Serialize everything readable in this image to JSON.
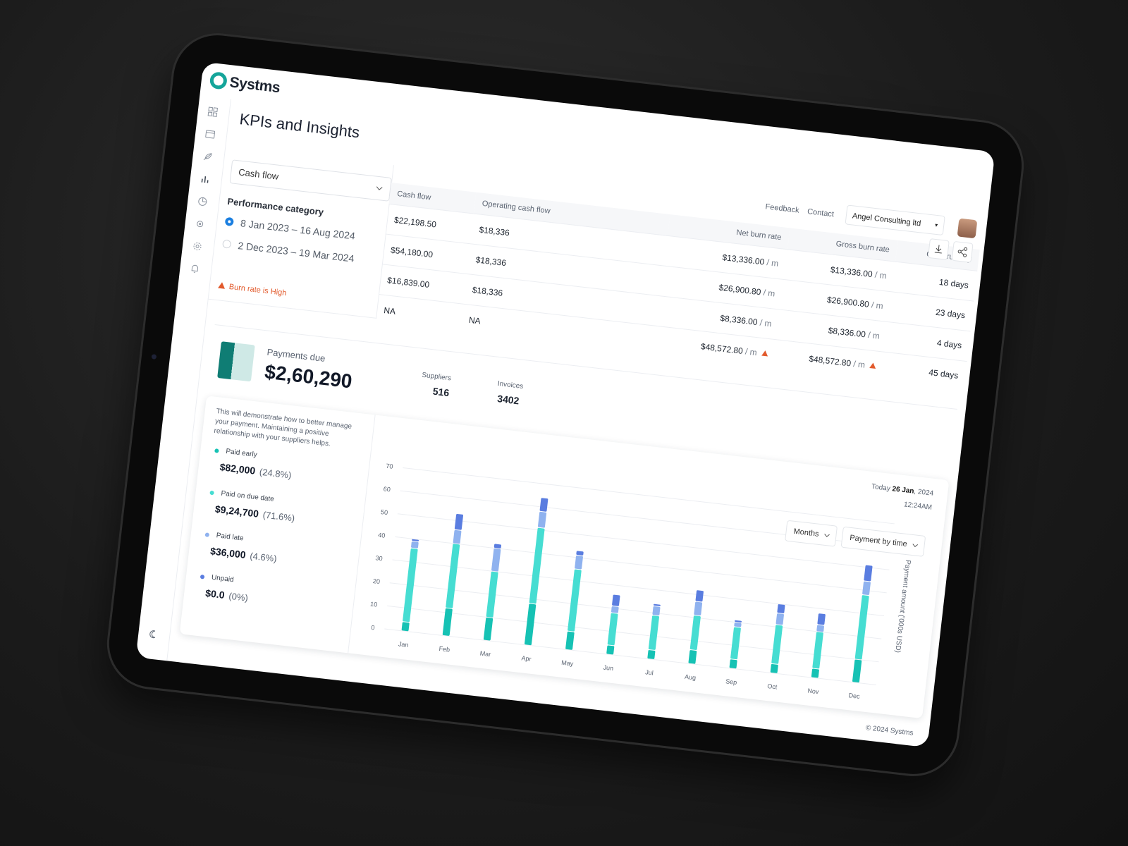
{
  "brand": "Systms",
  "page_title": "KPIs and Insights",
  "nav_links": [
    "Feedback",
    "Contact"
  ],
  "company": "Angel Consulting ltd",
  "filter": {
    "select": "Cash flow",
    "label": "Performance category",
    "options": [
      "8 Jan 2023 – 16 Aug 2024",
      "2 Dec 2023 – 19 Mar 2024"
    ],
    "warning": "Burn rate is High"
  },
  "table": {
    "columns": [
      "Cash flow",
      "Operating cash flow",
      "Net burn rate",
      "Gross burn rate",
      "Cash runway"
    ],
    "rate_unit": "/ m",
    "rows": [
      [
        "$22,198.50",
        "$18,336",
        "$13,336.00",
        "$13,336.00",
        "18 days"
      ],
      [
        "$54,180.00",
        "$18,336",
        "$26,900.80",
        "$26,900.80",
        "23 days"
      ],
      [
        "$16,839.00",
        "$18,336",
        "$8,336.00",
        "$8,336.00",
        "4 days"
      ],
      [
        "NA",
        "NA",
        "$48,572.80",
        "$48,572.80",
        "45 days"
      ]
    ]
  },
  "payments": {
    "label": "Payments due",
    "amount": "$2,60,290",
    "stats": [
      {
        "label": "Suppliers",
        "value": "516"
      },
      {
        "label": "Invoices",
        "value": "3402"
      }
    ],
    "note": "This will demonstrate how to better manage your payment. Maintaining a positive relationship with your suppliers helps.",
    "breakdown": [
      {
        "amount": "$82,000",
        "share": "(24.8%)"
      },
      {
        "amount": "$9,24,700",
        "share": "(71.6%)"
      },
      {
        "amount": "$36,000",
        "share": "(4.6%)"
      },
      {
        "amount": "$0.0",
        "share": "(0%)"
      }
    ],
    "date_prefix": "Today",
    "date_day": "26 Jan",
    "date_year": ", 2024",
    "time": "12:24AM",
    "dropdowns": [
      "Months",
      "Payment by time"
    ]
  },
  "chart_data": {
    "type": "bar",
    "stacked": true,
    "y_label": "Payment amount ('000s USD)",
    "categories": [
      "Jan",
      "Feb",
      "Mar",
      "Apr",
      "May",
      "Jun",
      "Jul",
      "Aug",
      "Sep",
      "Oct",
      "Nov",
      "Dec"
    ],
    "series": [
      {
        "name": "Paid early",
        "color": "#16c2b4",
        "values": [
          4,
          12,
          10,
          18,
          8,
          4,
          4,
          6,
          4,
          4,
          4,
          10
        ]
      },
      {
        "name": "Paid on due date",
        "color": "#46ddd2",
        "values": [
          32,
          28,
          20,
          33,
          27,
          14,
          15,
          15,
          14,
          17,
          16,
          28
        ]
      },
      {
        "name": "Paid late",
        "color": "#8fb2ef",
        "values": [
          3,
          6,
          10,
          7,
          6,
          3,
          4,
          6,
          2,
          5,
          3,
          6
        ]
      },
      {
        "name": "Unpaid",
        "color": "#5a7de0",
        "values": [
          1,
          7,
          2,
          6,
          2,
          5,
          1,
          5,
          1,
          4,
          5,
          7
        ]
      }
    ],
    "ylim": [
      0,
      70
    ],
    "yticks": [
      0,
      10,
      20,
      30,
      40,
      50,
      60,
      70
    ],
    "grid": true
  },
  "footer": "© 2024 Systms"
}
